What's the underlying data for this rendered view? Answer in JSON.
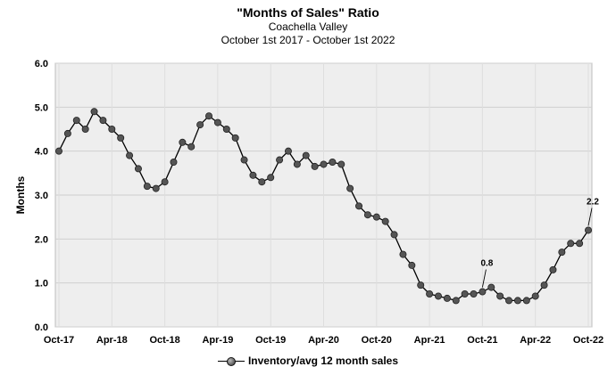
{
  "chart_data": {
    "type": "line",
    "title": "\"Months of Sales\" Ratio",
    "subtitle": "Coachella Valley",
    "date_range": "October 1st 2017 - October 1st 2022",
    "ylabel": "Months",
    "xlabel": "",
    "ylim": [
      0,
      6
    ],
    "yticks": [
      "0.0",
      "1.0",
      "2.0",
      "3.0",
      "4.0",
      "5.0",
      "6.0"
    ],
    "xtick_labels": [
      "Oct-17",
      "Apr-18",
      "Oct-18",
      "Apr-19",
      "Oct-19",
      "Apr-20",
      "Oct-20",
      "Apr-21",
      "Oct-21",
      "Apr-22",
      "Oct-22"
    ],
    "grid": true,
    "legend_position": "bottom-center",
    "series": [
      {
        "name": "Inventory/avg 12 month sales",
        "color": "#000000",
        "marker_color": "#555555",
        "x": [
          "Oct-17",
          "Nov-17",
          "Dec-17",
          "Jan-18",
          "Feb-18",
          "Mar-18",
          "Apr-18",
          "May-18",
          "Jun-18",
          "Jul-18",
          "Aug-18",
          "Sep-18",
          "Oct-18",
          "Nov-18",
          "Dec-18",
          "Jan-19",
          "Feb-19",
          "Mar-19",
          "Apr-19",
          "May-19",
          "Jun-19",
          "Jul-19",
          "Aug-19",
          "Sep-19",
          "Oct-19",
          "Nov-19",
          "Dec-19",
          "Jan-20",
          "Feb-20",
          "Mar-20",
          "Apr-20",
          "May-20",
          "Jun-20",
          "Jul-20",
          "Aug-20",
          "Sep-20",
          "Oct-20",
          "Nov-20",
          "Dec-20",
          "Jan-21",
          "Feb-21",
          "Mar-21",
          "Apr-21",
          "May-21",
          "Jun-21",
          "Jul-21",
          "Aug-21",
          "Sep-21",
          "Oct-21",
          "Nov-21",
          "Dec-21",
          "Jan-22",
          "Feb-22",
          "Mar-22",
          "Apr-22",
          "May-22",
          "Jun-22",
          "Jul-22",
          "Aug-22",
          "Sep-22",
          "Oct-22"
        ],
        "values": [
          4.0,
          4.4,
          4.7,
          4.5,
          4.9,
          4.7,
          4.5,
          4.3,
          3.9,
          3.6,
          3.2,
          3.15,
          3.3,
          3.75,
          4.2,
          4.1,
          4.6,
          4.8,
          4.65,
          4.5,
          4.3,
          3.8,
          3.45,
          3.3,
          3.4,
          3.8,
          4.0,
          3.7,
          3.9,
          3.65,
          3.7,
          3.75,
          3.7,
          3.15,
          2.75,
          2.55,
          2.5,
          2.4,
          2.1,
          1.65,
          1.4,
          0.95,
          0.75,
          0.7,
          0.65,
          0.6,
          0.75,
          0.75,
          0.8,
          0.9,
          0.7,
          0.6,
          0.6,
          0.6,
          0.7,
          0.95,
          1.3,
          1.7,
          1.9,
          1.9,
          2.2
        ]
      }
    ],
    "data_labels": [
      {
        "index": 48,
        "text": "0.8"
      },
      {
        "index": 60,
        "text": "2.2"
      }
    ]
  }
}
